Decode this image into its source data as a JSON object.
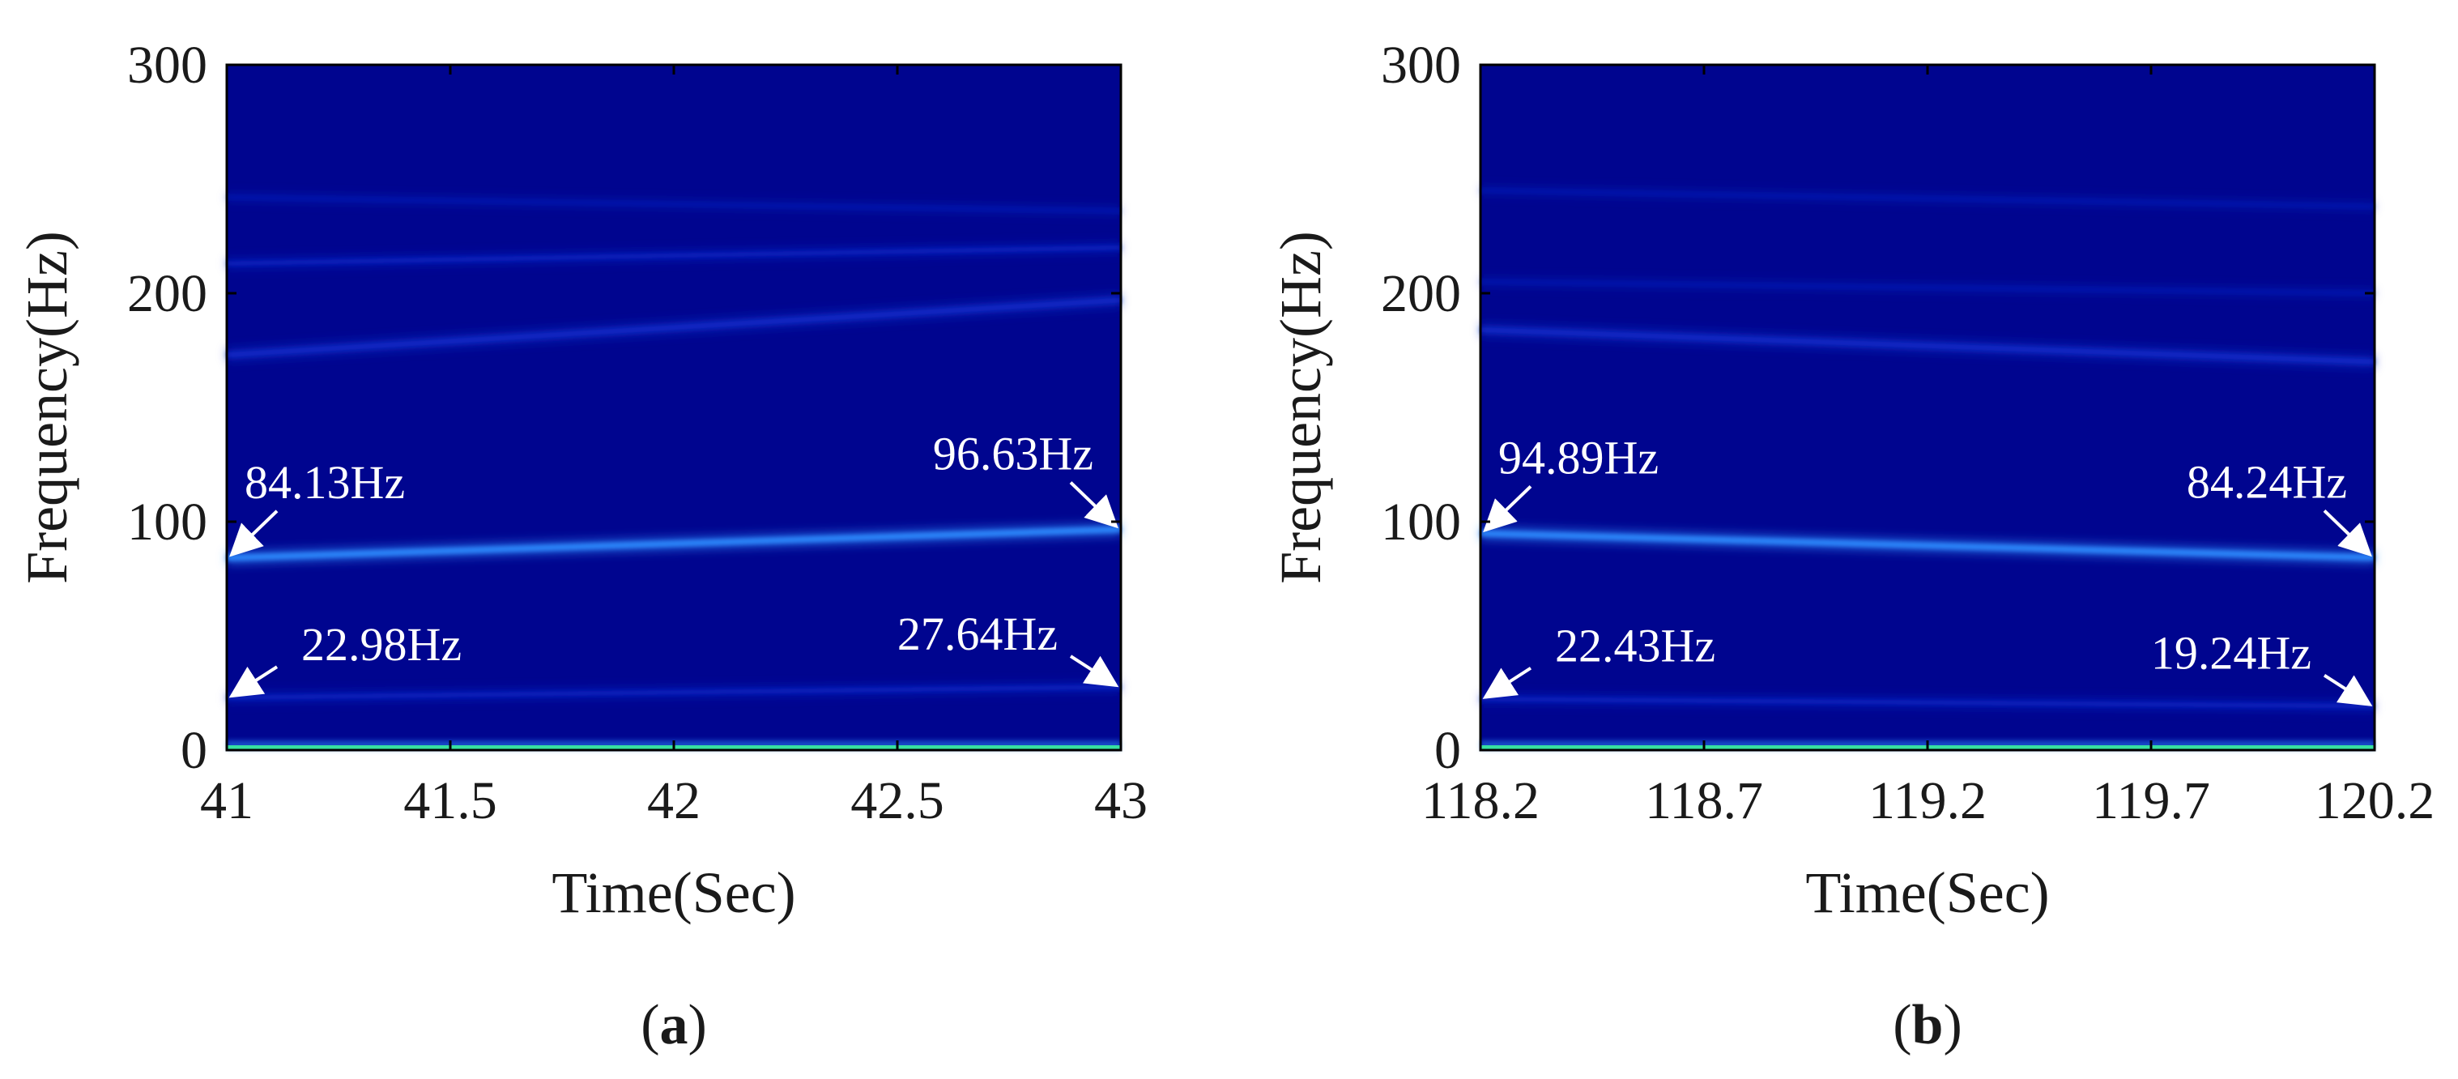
{
  "colors": {
    "background": "#00058f",
    "ridge_strong": "#2e8cff",
    "ridge_weak": "#0d2fd0",
    "baseline": "#36e0a0",
    "annotation": "#ffffff",
    "axis": "#000000"
  },
  "panels": [
    {
      "letter": "a",
      "xlabel": "Time(Sec)",
      "ylabel": "Frequency(Hz)"
    },
    {
      "letter": "b",
      "xlabel": "Time(Sec)",
      "ylabel": "Frequency(Hz)"
    }
  ],
  "chart_data": [
    {
      "type": "heatmap",
      "title": "",
      "xlabel": "Time(Sec)",
      "ylabel": "Frequency(Hz)",
      "xlim": [
        41,
        43
      ],
      "ylim": [
        0,
        300
      ],
      "xticks": [
        41,
        41.5,
        42,
        42.5,
        43
      ],
      "xtick_labels": [
        "41",
        "41.5",
        "42",
        "42.5",
        "43"
      ],
      "yticks": [
        0,
        100,
        200,
        300
      ],
      "ytick_labels": [
        "0",
        "100",
        "200",
        "300"
      ],
      "grid": false,
      "ridges": [
        {
          "x": [
            41,
            43
          ],
          "y": [
            84.13,
            96.63
          ],
          "strength": "strong"
        },
        {
          "x": [
            41,
            43
          ],
          "y": [
            22.98,
            27.64
          ],
          "strength": "weak"
        },
        {
          "x": [
            41,
            43
          ],
          "y": [
            173,
            197
          ],
          "strength": "medium"
        },
        {
          "x": [
            41,
            43
          ],
          "y": [
            213,
            220
          ],
          "strength": "weak"
        },
        {
          "x": [
            41,
            43
          ],
          "y": [
            242,
            236
          ],
          "strength": "faint"
        }
      ],
      "annotations": [
        {
          "text": "84.13Hz",
          "x": 41,
          "y": 84.13
        },
        {
          "text": "96.63Hz",
          "x": 43,
          "y": 96.63
        },
        {
          "text": "22.98Hz",
          "x": 41,
          "y": 22.98
        },
        {
          "text": "27.64Hz",
          "x": 43,
          "y": 27.64
        }
      ]
    },
    {
      "type": "heatmap",
      "title": "",
      "xlabel": "Time(Sec)",
      "ylabel": "Frequency(Hz)",
      "xlim": [
        118.2,
        120.2
      ],
      "ylim": [
        0,
        300
      ],
      "xticks": [
        118.2,
        118.7,
        119.2,
        119.7,
        120.2
      ],
      "xtick_labels": [
        "118.2",
        "118.7",
        "119.2",
        "119.7",
        "120.2"
      ],
      "yticks": [
        0,
        100,
        200,
        300
      ],
      "ytick_labels": [
        "0",
        "100",
        "200",
        "300"
      ],
      "grid": false,
      "ridges": [
        {
          "x": [
            118.2,
            120.2
          ],
          "y": [
            94.89,
            84.24
          ],
          "strength": "strong"
        },
        {
          "x": [
            118.2,
            120.2
          ],
          "y": [
            22.43,
            19.24
          ],
          "strength": "weak"
        },
        {
          "x": [
            118.2,
            120.2
          ],
          "y": [
            184,
            170
          ],
          "strength": "medium"
        },
        {
          "x": [
            118.2,
            120.2
          ],
          "y": [
            205,
            200
          ],
          "strength": "faint"
        },
        {
          "x": [
            118.2,
            120.2
          ],
          "y": [
            245,
            238
          ],
          "strength": "faint"
        }
      ],
      "annotations": [
        {
          "text": "94.89Hz",
          "x": 118.2,
          "y": 94.89
        },
        {
          "text": "84.24Hz",
          "x": 120.2,
          "y": 84.24
        },
        {
          "text": "22.43Hz",
          "x": 118.2,
          "y": 22.43
        },
        {
          "text": "19.24Hz",
          "x": 120.2,
          "y": 19.24
        }
      ]
    }
  ]
}
